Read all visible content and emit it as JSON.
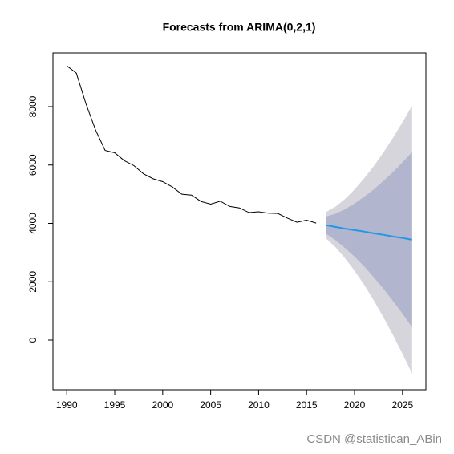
{
  "chart_data": {
    "type": "forecast",
    "title": "Forecasts from ARIMA(0,2,1)",
    "watermark": "CSDN @statistican_ABin",
    "xlim": [
      1988.56,
      2027.44
    ],
    "ylim": [
      -1704,
      9842
    ],
    "xticks": [
      1990,
      1995,
      2000,
      2005,
      2010,
      2015,
      2020,
      2025
    ],
    "yticks": [
      0,
      2000,
      4000,
      6000,
      8000
    ],
    "history": {
      "color": "#000000",
      "x": [
        1990,
        1991,
        1992,
        1993,
        1994,
        1995,
        1996,
        1997,
        1998,
        1999,
        2000,
        2001,
        2002,
        2003,
        2004,
        2005,
        2006,
        2007,
        2008,
        2009,
        2010,
        2011,
        2012,
        2013,
        2014,
        2015,
        2016
      ],
      "values": [
        9400,
        9150,
        8100,
        7200,
        6500,
        6420,
        6150,
        5980,
        5700,
        5530,
        5430,
        5250,
        5000,
        4970,
        4750,
        4660,
        4760,
        4580,
        4530,
        4370,
        4400,
        4350,
        4340,
        4180,
        4040,
        4110,
        4010
      ]
    },
    "forecast": {
      "color": "#2297e6",
      "color80": "#b1b5ce",
      "color95": "#d5d5db",
      "x": [
        2017,
        2018,
        2019,
        2020,
        2021,
        2022,
        2023,
        2024,
        2025,
        2026
      ],
      "mean": [
        3940,
        3880,
        3820,
        3770,
        3720,
        3660,
        3610,
        3550,
        3500,
        3440
      ],
      "lo80": [
        3650,
        3429,
        3159,
        2860,
        2528,
        2157,
        1768,
        1344,
        907,
        440
      ],
      "hi80": [
        4230,
        4331,
        4481,
        4680,
        4912,
        5163,
        5452,
        5756,
        6093,
        6440
      ],
      "lo95": [
        3496,
        3190,
        2809,
        2378,
        1896,
        1360,
        792,
        175,
        -467,
        -1150
      ],
      "hi95": [
        4384,
        4570,
        4831,
        5162,
        5544,
        5960,
        6428,
        6925,
        7467,
        8030
      ]
    }
  }
}
